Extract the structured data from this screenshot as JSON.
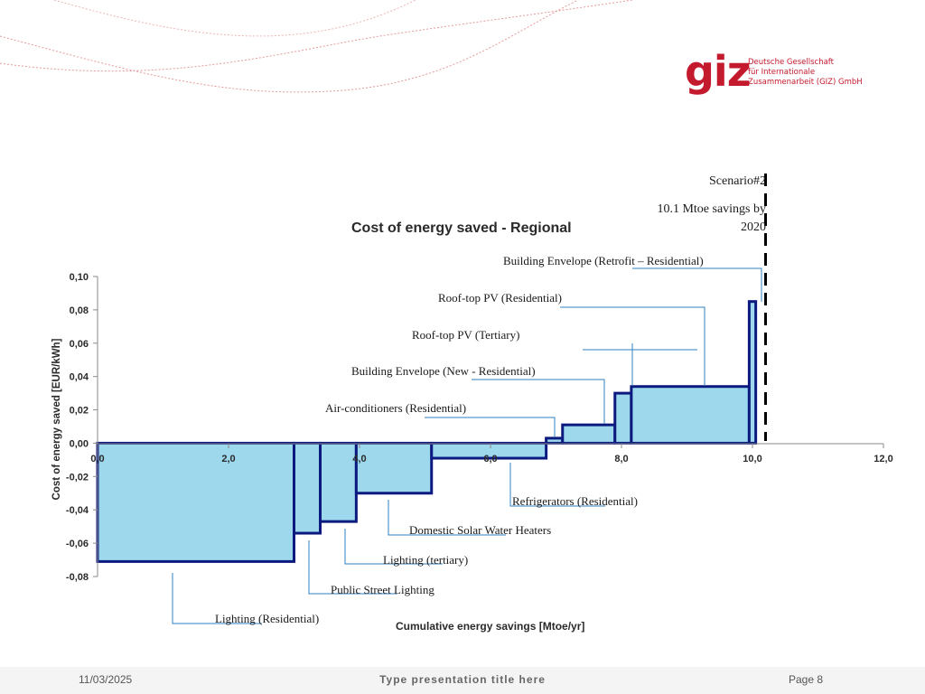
{
  "logo": {
    "mark": "giz",
    "lines": [
      "Deutsche Gesellschaft",
      "für Internationale",
      "Zusammenarbeit (GIZ) GmbH"
    ]
  },
  "chart_data": {
    "type": "bar",
    "title": "Cost of energy saved - Regional",
    "xlabel": "Cumulative energy savings [Mtoe/yr]",
    "ylabel": "Cost of energy saved [EUR/kWh]",
    "xlim": [
      0,
      12
    ],
    "ylim": [
      -0.08,
      0.1
    ],
    "x_ticks": [
      "0,0",
      "2,0",
      "4,0",
      "6,0",
      "8,0",
      "10,0",
      "12,0"
    ],
    "y_ticks": [
      "0,10",
      "0,08",
      "0,06",
      "0,04",
      "0,02",
      "0,00",
      "-0,02",
      "-0,04",
      "-0,06",
      "-0,08"
    ],
    "bar_color": "#9dd8ec",
    "outline_color": "#0c1a80",
    "bars": [
      {
        "x0": 0.0,
        "x1": 3.0,
        "value": -0.071
      },
      {
        "x0": 3.0,
        "x1": 3.4,
        "value": -0.054
      },
      {
        "x0": 3.4,
        "x1": 3.95,
        "value": -0.047
      },
      {
        "x0": 3.95,
        "x1": 5.1,
        "value": -0.03
      },
      {
        "x0": 5.1,
        "x1": 6.85,
        "value": -0.009
      },
      {
        "x0": 6.85,
        "x1": 7.1,
        "value": 0.003
      },
      {
        "x0": 7.1,
        "x1": 7.9,
        "value": 0.011
      },
      {
        "x0": 7.9,
        "x1": 8.15,
        "value": 0.03
      },
      {
        "x0": 8.15,
        "x1": 9.95,
        "value": 0.034
      },
      {
        "x0": 9.95,
        "x1": 10.05,
        "value": 0.085
      }
    ],
    "scenario": {
      "x": 10.2,
      "label": "Scenario#2",
      "savings_line1": "10.1 Mtoe savings by",
      "savings_line2": "2020"
    },
    "annotations": [
      {
        "text": "Building Envelope (Retrofit – Residential)"
      },
      {
        "text": "Roof-top PV (Residential)"
      },
      {
        "text": "Roof-top PV (Tertiary)"
      },
      {
        "text": "Building Envelope (New - Residential)"
      },
      {
        "text": "Air-conditioners (Residential)"
      },
      {
        "text": "Refrigerators (Residential)"
      },
      {
        "text": "Domestic Solar Water Heaters"
      },
      {
        "text": "Lighting (tertiary)"
      },
      {
        "text": "Public Street Lighting"
      },
      {
        "text": "Lighting (Residential)"
      }
    ]
  },
  "footer": {
    "date": "11/03/2025",
    "title": "Type presentation title here",
    "page": "Page 8"
  }
}
